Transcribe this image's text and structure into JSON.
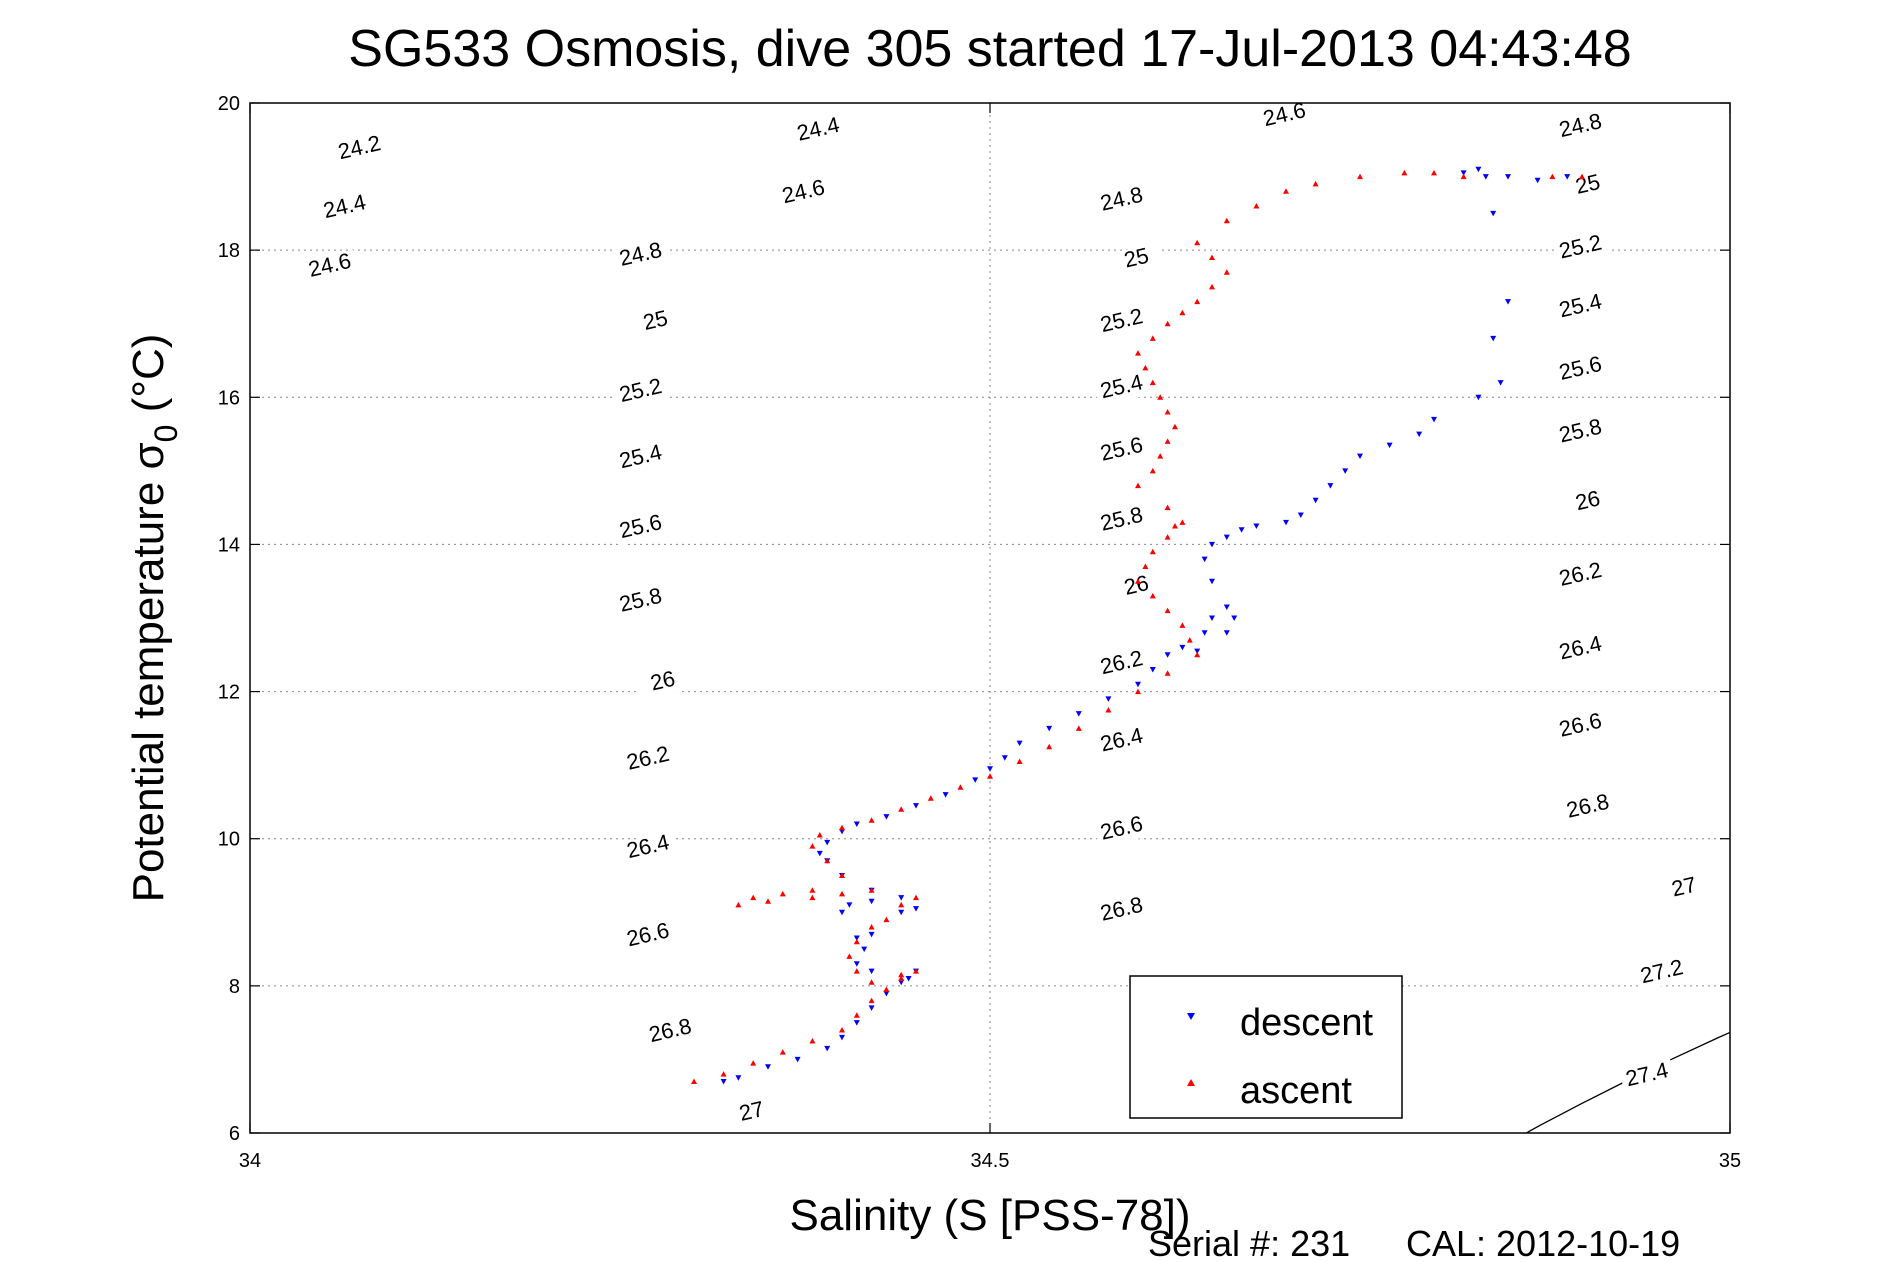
{
  "chart_data": {
    "type": "scatter",
    "title": "SG533 Osmosis, dive 305 started 17-Jul-2013 04:43:48",
    "xlabel": "Salinity (S [PSS-78])",
    "ylabel_main": "Potential temperature σ",
    "ylabel_sub": "0",
    "ylabel_unit": " (°C)",
    "xlim": [
      34,
      35
    ],
    "ylim": [
      6,
      20
    ],
    "x_ticks": [
      34,
      34.5,
      35
    ],
    "x_tick_labels": [
      "34",
      "34.5",
      "35"
    ],
    "y_ticks": [
      6,
      8,
      10,
      12,
      14,
      16,
      18,
      20
    ],
    "y_tick_labels": [
      "6",
      "8",
      "10",
      "12",
      "14",
      "16",
      "18",
      "20"
    ],
    "grid": true,
    "legend_position": "bottom-right",
    "colors": {
      "descent": "#0000ff",
      "ascent": "#ff0000",
      "contour": "#000000"
    },
    "contour_levels": [
      24.2,
      24.4,
      24.6,
      24.8,
      25,
      25.2,
      25.4,
      25.6,
      25.8,
      26,
      26.2,
      26.4,
      26.6,
      26.8,
      27,
      27.2,
      27.4
    ],
    "contour_labels": [
      {
        "text": "24.2",
        "x": 34.075,
        "y": 19.3
      },
      {
        "text": "24.4",
        "x": 34.065,
        "y": 18.5
      },
      {
        "text": "24.6",
        "x": 34.055,
        "y": 17.7
      },
      {
        "text": "24.4",
        "x": 34.385,
        "y": 19.55
      },
      {
        "text": "24.6",
        "x": 34.375,
        "y": 18.7
      },
      {
        "text": "24.8",
        "x": 34.265,
        "y": 17.85
      },
      {
        "text": "25",
        "x": 34.275,
        "y": 16.95
      },
      {
        "text": "25.2",
        "x": 34.265,
        "y": 16.0
      },
      {
        "text": "25.4",
        "x": 34.265,
        "y": 15.1
      },
      {
        "text": "25.6",
        "x": 34.265,
        "y": 14.15
      },
      {
        "text": "25.8",
        "x": 34.265,
        "y": 13.15
      },
      {
        "text": "26",
        "x": 34.28,
        "y": 12.05
      },
      {
        "text": "26.2",
        "x": 34.27,
        "y": 11.0
      },
      {
        "text": "26.4",
        "x": 34.27,
        "y": 9.8
      },
      {
        "text": "26.6",
        "x": 34.27,
        "y": 8.6
      },
      {
        "text": "26.8",
        "x": 34.285,
        "y": 7.3
      },
      {
        "text": "27",
        "x": 34.34,
        "y": 6.2
      },
      {
        "text": "24.6",
        "x": 34.7,
        "y": 19.75
      },
      {
        "text": "24.8",
        "x": 34.59,
        "y": 18.6
      },
      {
        "text": "25",
        "x": 34.6,
        "y": 17.8
      },
      {
        "text": "25.2",
        "x": 34.59,
        "y": 16.95
      },
      {
        "text": "25.4",
        "x": 34.59,
        "y": 16.05
      },
      {
        "text": "25.6",
        "x": 34.59,
        "y": 15.2
      },
      {
        "text": "25.8",
        "x": 34.59,
        "y": 14.25
      },
      {
        "text": "26",
        "x": 34.6,
        "y": 13.35
      },
      {
        "text": "26.2",
        "x": 34.59,
        "y": 12.3
      },
      {
        "text": "26.4",
        "x": 34.59,
        "y": 11.25
      },
      {
        "text": "26.6",
        "x": 34.59,
        "y": 10.05
      },
      {
        "text": "26.8",
        "x": 34.59,
        "y": 8.95
      },
      {
        "text": "24.8",
        "x": 34.9,
        "y": 19.6
      },
      {
        "text": "25",
        "x": 34.905,
        "y": 18.8
      },
      {
        "text": "25.2",
        "x": 34.9,
        "y": 17.95
      },
      {
        "text": "25.4",
        "x": 34.9,
        "y": 17.15
      },
      {
        "text": "25.6",
        "x": 34.9,
        "y": 16.3
      },
      {
        "text": "25.8",
        "x": 34.9,
        "y": 15.45
      },
      {
        "text": "26",
        "x": 34.905,
        "y": 14.5
      },
      {
        "text": "26.2",
        "x": 34.9,
        "y": 13.5
      },
      {
        "text": "26.4",
        "x": 34.9,
        "y": 12.5
      },
      {
        "text": "26.6",
        "x": 34.9,
        "y": 11.45
      },
      {
        "text": "26.8",
        "x": 34.905,
        "y": 10.35
      },
      {
        "text": "27",
        "x": 34.97,
        "y": 9.25
      },
      {
        "text": "27.2",
        "x": 34.955,
        "y": 8.1
      },
      {
        "text": "27.4",
        "x": 34.945,
        "y": 6.7
      }
    ],
    "series": [
      {
        "name": "descent",
        "marker": "triangle-down",
        "x": [
          34.32,
          34.33,
          34.35,
          34.37,
          34.39,
          34.4,
          34.41,
          34.42,
          34.43,
          34.44,
          34.45,
          34.445,
          34.43,
          34.42,
          34.41,
          34.415,
          34.42,
          34.41,
          34.4,
          34.405,
          34.42,
          34.44,
          34.45,
          34.44,
          34.42,
          34.4,
          34.39,
          34.385,
          34.39,
          34.4,
          34.41,
          34.43,
          34.45,
          34.47,
          34.49,
          34.5,
          34.51,
          34.52,
          34.54,
          34.56,
          34.58,
          34.6,
          34.61,
          34.62,
          34.63,
          34.64,
          34.645,
          34.65,
          34.66,
          34.665,
          34.66,
          34.65,
          34.645,
          34.65,
          34.66,
          34.67,
          34.68,
          34.7,
          34.71,
          34.72,
          34.73,
          34.74,
          34.75,
          34.77,
          34.79,
          34.8,
          34.83,
          34.845,
          34.84,
          34.85,
          34.84,
          34.835,
          34.82,
          34.83,
          34.85,
          34.87,
          34.89
        ],
        "y": [
          6.7,
          6.75,
          6.9,
          7.0,
          7.15,
          7.3,
          7.5,
          7.7,
          7.9,
          8.05,
          8.2,
          8.1,
          7.9,
          8.2,
          8.3,
          8.5,
          8.7,
          8.65,
          9.0,
          9.1,
          9.15,
          9.2,
          9.05,
          9.0,
          9.3,
          9.5,
          9.7,
          9.8,
          9.95,
          10.1,
          10.2,
          10.3,
          10.45,
          10.6,
          10.8,
          10.95,
          11.1,
          11.3,
          11.5,
          11.7,
          11.9,
          12.1,
          12.3,
          12.5,
          12.6,
          12.55,
          12.8,
          13.0,
          13.15,
          13.0,
          12.8,
          13.5,
          13.8,
          14.0,
          14.1,
          14.2,
          14.25,
          14.3,
          14.4,
          14.6,
          14.8,
          15.0,
          15.2,
          15.35,
          15.5,
          15.7,
          16.0,
          16.2,
          16.8,
          17.3,
          18.5,
          19.0,
          19.05,
          19.1,
          19.0,
          18.95,
          19.0
        ]
      },
      {
        "name": "ascent",
        "marker": "triangle-up",
        "x": [
          34.3,
          34.32,
          34.34,
          34.36,
          34.38,
          34.4,
          34.41,
          34.42,
          34.43,
          34.44,
          34.45,
          34.44,
          34.42,
          34.41,
          34.405,
          34.41,
          34.42,
          34.43,
          34.44,
          34.45,
          34.42,
          34.4,
          34.38,
          34.35,
          34.33,
          34.34,
          34.36,
          34.38,
          34.4,
          34.39,
          34.38,
          34.385,
          34.4,
          34.42,
          34.44,
          34.46,
          34.48,
          34.5,
          34.52,
          34.54,
          34.56,
          34.58,
          34.6,
          34.62,
          34.64,
          34.635,
          34.63,
          34.62,
          34.61,
          34.6,
          34.605,
          34.61,
          34.62,
          34.625,
          34.63,
          34.62,
          34.6,
          34.61,
          34.615,
          34.62,
          34.625,
          34.62,
          34.615,
          34.61,
          34.605,
          34.6,
          34.61,
          34.62,
          34.63,
          34.64,
          34.65,
          34.66,
          34.65,
          34.64,
          34.66,
          34.68,
          34.7,
          34.72,
          34.75,
          34.78,
          34.8,
          34.82,
          34.88,
          34.9
        ],
        "y": [
          6.7,
          6.8,
          6.95,
          7.1,
          7.25,
          7.4,
          7.6,
          7.8,
          7.95,
          8.1,
          8.2,
          8.15,
          8.05,
          8.2,
          8.4,
          8.6,
          8.8,
          8.9,
          9.1,
          9.2,
          9.3,
          9.25,
          9.2,
          9.15,
          9.1,
          9.2,
          9.25,
          9.3,
          9.5,
          9.7,
          9.9,
          10.05,
          10.15,
          10.25,
          10.4,
          10.55,
          10.7,
          10.85,
          11.05,
          11.25,
          11.5,
          11.75,
          12.0,
          12.25,
          12.5,
          12.7,
          12.9,
          13.1,
          13.3,
          13.5,
          13.7,
          13.9,
          14.1,
          14.25,
          14.3,
          14.5,
          14.8,
          15.0,
          15.2,
          15.4,
          15.6,
          15.8,
          16.0,
          16.2,
          16.4,
          16.6,
          16.8,
          17.0,
          17.15,
          17.3,
          17.5,
          17.7,
          17.9,
          18.1,
          18.4,
          18.6,
          18.8,
          18.9,
          19.0,
          19.05,
          19.05,
          19.0,
          19.0,
          19.0
        ]
      }
    ],
    "legend": [
      {
        "label": "descent",
        "color": "#0000ff",
        "marker": "triangle-down"
      },
      {
        "label": "ascent",
        "color": "#ff0000",
        "marker": "triangle-up"
      }
    ]
  },
  "footer": {
    "serial": "Serial #: 231",
    "cal": "CAL: 2012-10-19"
  }
}
